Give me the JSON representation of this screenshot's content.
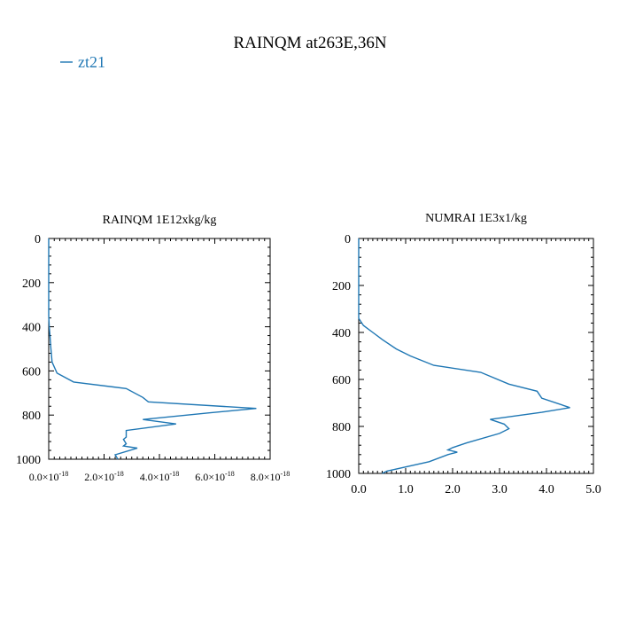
{
  "title": "RAINQM at263E,36N",
  "legend": {
    "label": "zt21",
    "color": "#1f77b4"
  },
  "chart_data": [
    {
      "type": "line",
      "title": "RAINQM  1E12xkg/kg",
      "xlim": [
        0,
        8e-18
      ],
      "ylim": [
        0,
        1000
      ],
      "y_inverted": true,
      "x_ticks": [
        0,
        2e-18,
        4e-18,
        6e-18,
        8e-18
      ],
      "x_tick_labels": [
        {
          "mant": "0.0",
          "exp": "-18"
        },
        {
          "mant": "2.0",
          "exp": "-18"
        },
        {
          "mant": "4.0",
          "exp": "-18"
        },
        {
          "mant": "6.0",
          "exp": "-18"
        },
        {
          "mant": "8.0",
          "exp": "-18"
        }
      ],
      "y_ticks": [
        0,
        200,
        400,
        600,
        800,
        1000
      ],
      "y_tick_labels": [
        "0",
        "200",
        "400",
        "600",
        "800",
        "1000"
      ],
      "series": [
        {
          "name": "zt21",
          "color": "#1f77b4",
          "x": [
            0,
            0,
            2e-20,
            5e-20,
            8e-20,
            1.2e-19,
            3e-19,
            9e-19,
            2.8e-18,
            3.4e-18,
            3.6e-18,
            7.5e-18,
            5.8e-18,
            3.4e-18,
            4.6e-18,
            2.8e-18,
            2.8e-18,
            2.7e-18,
            2.8e-18,
            2.7e-18,
            3.2e-18,
            2.4e-18,
            2.5e-18
          ],
          "y": [
            0,
            350,
            400,
            450,
            500,
            560,
            610,
            650,
            680,
            720,
            740,
            770,
            790,
            820,
            840,
            870,
            900,
            910,
            930,
            940,
            950,
            980,
            1000
          ]
        }
      ]
    },
    {
      "type": "line",
      "title": "NUMRAI  1E3x1/kg",
      "xlim": [
        0,
        5
      ],
      "ylim": [
        0,
        1000
      ],
      "y_inverted": true,
      "x_ticks": [
        0,
        1,
        2,
        3,
        4,
        5
      ],
      "x_tick_labels": [
        "0.0",
        "1.0",
        "2.0",
        "3.0",
        "4.0",
        "5.0"
      ],
      "y_ticks": [
        0,
        200,
        400,
        600,
        800,
        1000
      ],
      "y_tick_labels": [
        "0",
        "200",
        "400",
        "600",
        "800",
        "1000"
      ],
      "series": [
        {
          "name": "zt21",
          "color": "#1f77b4",
          "x": [
            0,
            0,
            0.1,
            0.3,
            0.5,
            0.8,
            1.1,
            1.6,
            2.6,
            3.2,
            3.8,
            3.9,
            4.5,
            3.9,
            2.8,
            3.1,
            3.2,
            3.0,
            2.3,
            2.0,
            1.9,
            2.1,
            1.9,
            1.5,
            0.6,
            0.5
          ],
          "y": [
            0,
            340,
            370,
            400,
            430,
            470,
            500,
            540,
            570,
            620,
            650,
            680,
            720,
            740,
            770,
            790,
            810,
            830,
            870,
            890,
            900,
            910,
            920,
            950,
            990,
            1000
          ]
        }
      ]
    }
  ]
}
